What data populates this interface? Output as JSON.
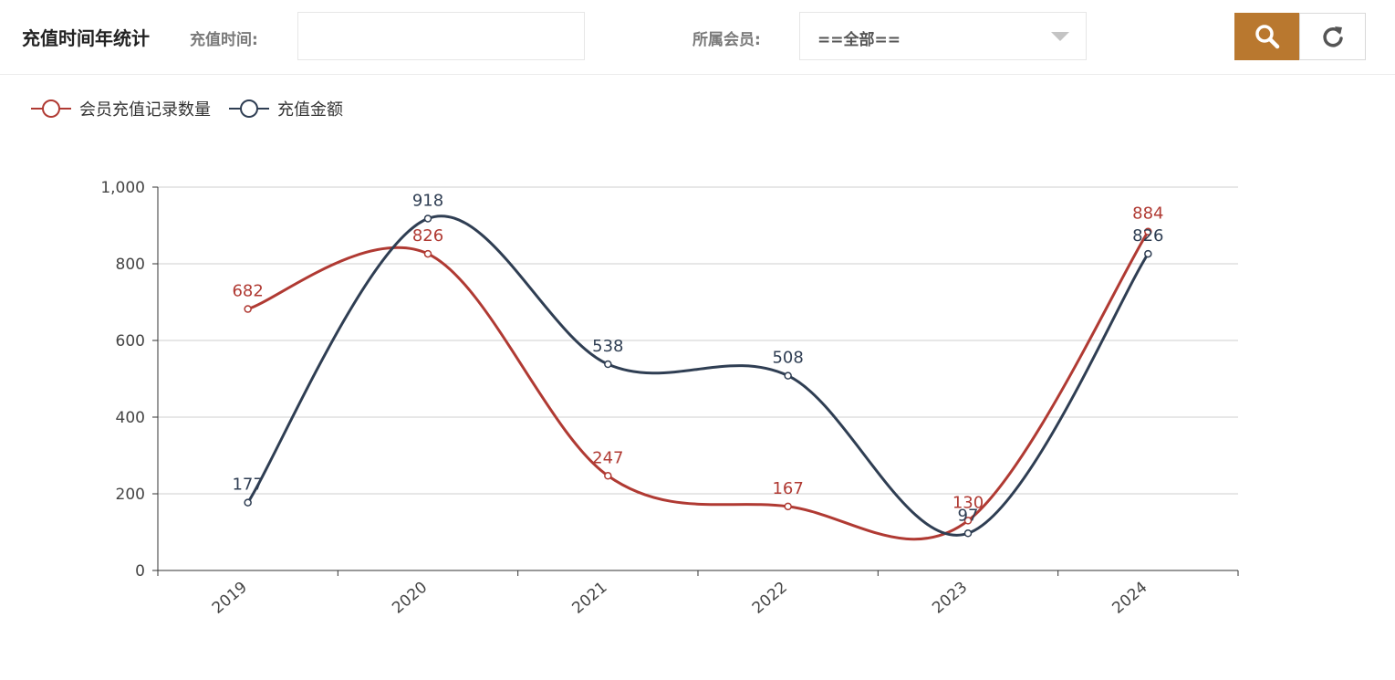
{
  "header": {
    "title": "充值时间年统计",
    "time_label": "充值时间:",
    "time_value": "",
    "member_label": "所属会员:",
    "member_select_value": "==全部=="
  },
  "icons": {
    "search": "search-icon",
    "reset": "refresh-icon"
  },
  "colors": {
    "accent": "#b9782f",
    "series_count": "#b03a33",
    "series_amount": "#2f3e53"
  },
  "chart_data": {
    "type": "line",
    "smooth": true,
    "categories": [
      "2019",
      "2020",
      "2021",
      "2022",
      "2023",
      "2024"
    ],
    "series": [
      {
        "name": "会员充值记录数量",
        "values": [
          682,
          826,
          247,
          167,
          130,
          884
        ]
      },
      {
        "name": "充值金额",
        "values": [
          177,
          918,
          538,
          508,
          97,
          826
        ]
      }
    ],
    "yticks": [
      "0",
      "200",
      "400",
      "600",
      "800",
      "1,000"
    ],
    "ylim": [
      0,
      1000
    ],
    "grid": "horizontal",
    "legend": "top-left",
    "xlabel": "",
    "ylabel": ""
  }
}
